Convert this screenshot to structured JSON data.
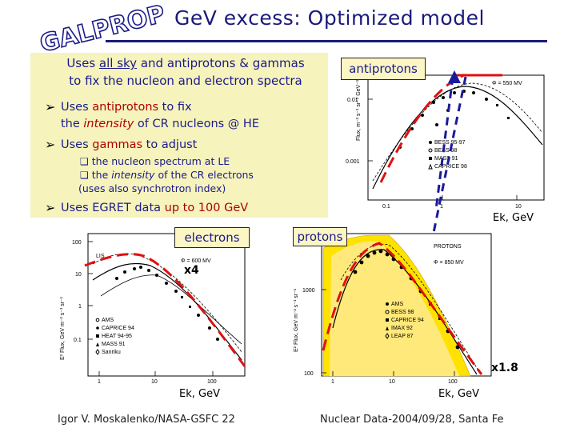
{
  "logo": {
    "text": "GALPROP"
  },
  "slide": {
    "title": "GeV excess: Optimized model"
  },
  "intro": {
    "p1": "Uses ",
    "u1": "all sky",
    "p2": " and antiprotons & gammas",
    "line2": "to fix the nucleon and electron spectra"
  },
  "bullets": {
    "b1_p1": "Uses ",
    "b1_a1": "antiprotons",
    "b1_p2": " to fix",
    "b1_line2_p1": "the ",
    "b1_line2_i": "intensity",
    "b1_line2_p2": " of CR nucleons @ HE",
    "b2_p1": "Uses ",
    "b2_a1": "gammas",
    "b2_p2": " to adjust",
    "b3_p1": "Uses EGRET data ",
    "b3_a1": "up to 100 GeV"
  },
  "subbullets": {
    "s1": "the nucleon spectrum at LE",
    "s2_p1": "the ",
    "s2_i": "intensity",
    "s2_p2": " of the CR electrons",
    "s2_line2": "(uses also synchrotron index)"
  },
  "labels": {
    "antiprotons": "antiprotons",
    "electrons": "electrons",
    "protons": "protons"
  },
  "multipliers": {
    "electrons": "x4",
    "protons": "x1.8"
  },
  "axes": {
    "ek_antiprotons": "Ek, GeV",
    "ek_electrons": "Ek, GeV",
    "ek_protons": "Ek, GeV"
  },
  "antiproton_plot": {
    "phi": "Φ = 550 MV",
    "ylabel": "Flux, m⁻² s⁻¹ sr⁻¹ GeV⁻¹",
    "yticks": [
      "0.01",
      "0.001"
    ],
    "xticks": [
      "0.1",
      "1",
      "10"
    ],
    "legend": [
      "BESS 95-97",
      "BESS 98",
      "MASS 91",
      "CAPRICE 98"
    ]
  },
  "electron_plot": {
    "phi": "Φ = 600 MV",
    "lis": "LIS",
    "ylabel": "E² Flux, GeV m⁻² s⁻¹ sr⁻¹",
    "yticks": [
      "100",
      "10",
      "1",
      "0.1"
    ],
    "xticks": [
      "1",
      "10",
      "100"
    ],
    "legend": [
      "AMS",
      "CAPRICE 94",
      "HEAT 94-95",
      "MASS 91",
      "Sanriku"
    ]
  },
  "proton_plot": {
    "phi": "Φ = 850 MV",
    "title": "PROTONS",
    "ylabel": "E² Flux, GeV m⁻² s⁻¹ sr⁻¹",
    "yticks": [
      "1000",
      "100"
    ],
    "xticks": [
      "1",
      "10",
      "100"
    ],
    "legend": [
      "AMS",
      "BESS 98",
      "CAPRICE 94",
      "IMAX 92",
      "LEAP 87"
    ]
  },
  "footer": {
    "left": "Igor V. Moskalenko/NASA-GSFC 22",
    "right": "Nuclear Data-2004/09/28, Santa Fe"
  }
}
